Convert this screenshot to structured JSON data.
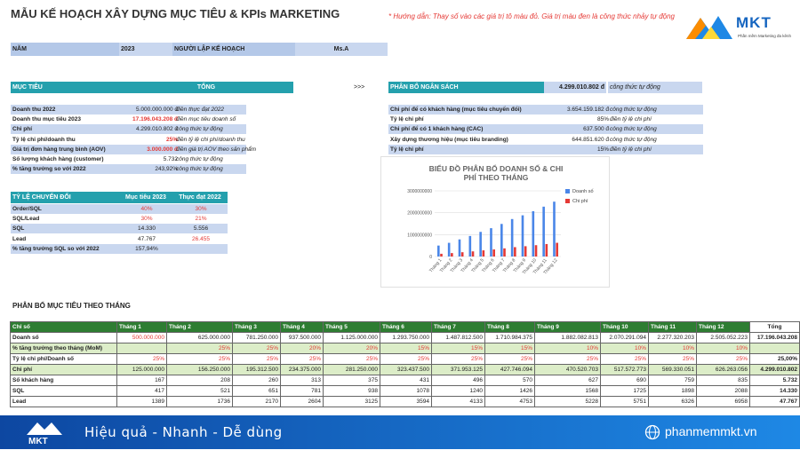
{
  "title": "MẪU KẾ HOẠCH XÂY DỰNG MỤC TIÊU & KPIs MARKETING",
  "hint": "* Hướng dẫn: Thay số vào các giá trị tô màu đỏ. Giá trị màu đen là công thức nhảy tự động",
  "logo": {
    "name": "MKT",
    "tagline": "Phần mềm Marketing đa kênh"
  },
  "year_label": "NĂM",
  "year_value": "2023",
  "planner_label": "NGƯỜI LẬP KẾ HOẠCH",
  "planner_value": "Ms.A",
  "goals": {
    "col1": "MỤC TIÊU",
    "col2": "TỔNG",
    "rows": [
      {
        "label": "Doanh thu 2022",
        "value": "5.000.000.000 đ",
        "note": "điền thực đạt 2022",
        "red": false
      },
      {
        "label": "Doanh thu mục tiêu 2023",
        "value": "17.196.043.208 đ",
        "note": "điền mục tiêu doanh số",
        "red": true
      },
      {
        "label": "Chi phí",
        "value": "4.299.010.802 đ",
        "note": "công thức tự động",
        "red": false
      },
      {
        "label": "Tỷ lệ chi phí/doanh thu",
        "value": "25%",
        "note": "điền tỷ lệ chi phí/doanh thu",
        "red": true
      },
      {
        "label": "Giá trị đơn hàng trung bình (AOV)",
        "value": "3.000.000 đ",
        "note": "điền giá trị AOV theo sản phẩm",
        "red": true
      },
      {
        "label": "Số lượng khách hàng (customer)",
        "value": "5.732",
        "note": "công thức tự động",
        "red": false
      },
      {
        "label": "% tăng trưởng so với 2022",
        "value": "243,92%",
        "note": "công thức tự động",
        "red": false
      }
    ]
  },
  "arrow": ">>>",
  "budget": {
    "title": "PHÂN BỔ NGÂN SÁCH",
    "total": "4.299.010.802 đ",
    "total_note": "công thức tự động",
    "rows": [
      {
        "label": "Chi phí để có khách hàng (mục tiêu chuyển đổi)",
        "value": "3.654.159.182 đ",
        "note": "công thức tự động",
        "red": false
      },
      {
        "label": "Tỷ lệ chi phí",
        "value": "85%",
        "note": "điền tỷ lệ chi phí",
        "red": false
      },
      {
        "label": "Chi phí để có 1 khách hàng (CAC)",
        "value": "637.500 đ",
        "note": "công thức tự động",
        "red": false
      },
      {
        "label": "Xây dựng thương hiệu (mục tiêu branding)",
        "value": "644.851.620 đ",
        "note": "công thức tự động",
        "red": false
      },
      {
        "label": "Tỷ lệ chi phí",
        "value": "15%",
        "note": "điền tỷ lệ chi phí",
        "red": false
      }
    ]
  },
  "conversion": {
    "title": "TỶ LỆ CHUYỂN ĐỔI",
    "col1": "Mục tiêu 2023",
    "col2": "Thực đạt 2022",
    "rows": [
      {
        "label": "Order/SQL",
        "v1": "40%",
        "v2": "30%",
        "red": true
      },
      {
        "label": "SQL/Lead",
        "v1": "30%",
        "v2": "21%",
        "red": true
      },
      {
        "label": "SQL",
        "v1": "14.330",
        "v2": "5.556",
        "red": false
      },
      {
        "label": "Lead",
        "v1": "47.767",
        "v2": "26.455",
        "red": false
      },
      {
        "label": "% tăng trưởng SQL so với 2022",
        "v1": "157,94%",
        "v2": "",
        "red": false
      }
    ]
  },
  "chart_data": {
    "type": "bar",
    "title": "BIỂU ĐỒ PHÂN BỔ DOANH SỐ & CHI PHÍ THEO THÁNG",
    "categories": [
      "Tháng 1",
      "Tháng 2",
      "Tháng 3",
      "Tháng 4",
      "Tháng 5",
      "Tháng 6",
      "Tháng 7",
      "Tháng 8",
      "Tháng 9",
      "Tháng 10",
      "Tháng 11",
      "Tháng 12"
    ],
    "series": [
      {
        "name": "Doanh số",
        "color": "#4a86e8",
        "values": [
          500000000,
          625000000,
          781250000,
          937500000,
          1125000000,
          1293750000,
          1487812500,
          1710984375,
          1882082813,
          2070291094,
          2277320203,
          2505052223
        ]
      },
      {
        "name": "Chi phí",
        "color": "#e53935",
        "values": [
          125000000,
          156250000,
          195312500,
          234375000,
          281250000,
          323437500,
          371953125,
          427746094,
          470520703,
          517572773,
          569330051,
          626263056
        ]
      }
    ],
    "yticks": [
      "0",
      "1000000000",
      "2000000000",
      "3000000000"
    ],
    "ylim": [
      0,
      3000000000
    ],
    "legend": "right",
    "grid": true
  },
  "monthly": {
    "title": "PHÂN BỔ MỤC TIÊU THEO THÁNG",
    "headers": [
      "Chỉ số",
      "Tháng 1",
      "Tháng 2",
      "Tháng 3",
      "Tháng 4",
      "Tháng 5",
      "Tháng 6",
      "Tháng 7",
      "Tháng 8",
      "Tháng 9",
      "Tháng 10",
      "Tháng 11",
      "Tháng 12",
      "Tổng"
    ],
    "rows": [
      {
        "label": "Doanh số",
        "cells": [
          "500.000.000",
          "625.000.000",
          "781.250.000",
          "937.500.000",
          "1.125.000.000",
          "1.293.750.000",
          "1.487.812.500",
          "1.710.984.375",
          "1.882.082.813",
          "2.070.291.094",
          "2.277.320.203",
          "2.505.052.223"
        ],
        "total": "17.196.043.208",
        "green": false,
        "redfirst": true,
        "redall": false
      },
      {
        "label": "% tăng trưởng theo tháng (MoM)",
        "cells": [
          "",
          "25%",
          "25%",
          "20%",
          "20%",
          "15%",
          "15%",
          "15%",
          "10%",
          "10%",
          "10%",
          "10%"
        ],
        "total": "",
        "green": true,
        "redfirst": false,
        "redall": true
      },
      {
        "label": "Tỷ lệ chi phí/Doanh số",
        "cells": [
          "25%",
          "25%",
          "25%",
          "25%",
          "25%",
          "25%",
          "25%",
          "25%",
          "25%",
          "25%",
          "25%",
          "25%"
        ],
        "total": "25,00%",
        "green": false,
        "redfirst": false,
        "redall": true
      },
      {
        "label": "Chi phí",
        "cells": [
          "125.000.000",
          "156.250.000",
          "195.312.500",
          "234.375.000",
          "281.250.000",
          "323.437.500",
          "371.953.125",
          "427.746.094",
          "470.520.703",
          "517.572.773",
          "569.330.051",
          "626.263.056"
        ],
        "total": "4.299.010.802",
        "green": true,
        "redfirst": false,
        "redall": false
      },
      {
        "label": "Số khách hàng",
        "cells": [
          "167",
          "208",
          "260",
          "313",
          "375",
          "431",
          "496",
          "570",
          "627",
          "690",
          "759",
          "835"
        ],
        "total": "5.732",
        "green": false,
        "redfirst": false,
        "redall": false
      },
      {
        "label": "SQL",
        "cells": [
          "417",
          "521",
          "651",
          "781",
          "938",
          "1078",
          "1240",
          "1426",
          "1568",
          "1725",
          "1898",
          "2088"
        ],
        "total": "14.330",
        "green": false,
        "redfirst": false,
        "redall": false
      },
      {
        "label": "Lead",
        "cells": [
          "1389",
          "1736",
          "2170",
          "2604",
          "3125",
          "3594",
          "4133",
          "4753",
          "5228",
          "5751",
          "6326",
          "6958"
        ],
        "total": "47.767",
        "green": false,
        "redfirst": false,
        "redall": false
      }
    ]
  },
  "footer": {
    "slogan": "Hiệu quả - Nhanh - Dễ dùng",
    "site": "phanmemmkt.vn",
    "brand": "MKT"
  }
}
